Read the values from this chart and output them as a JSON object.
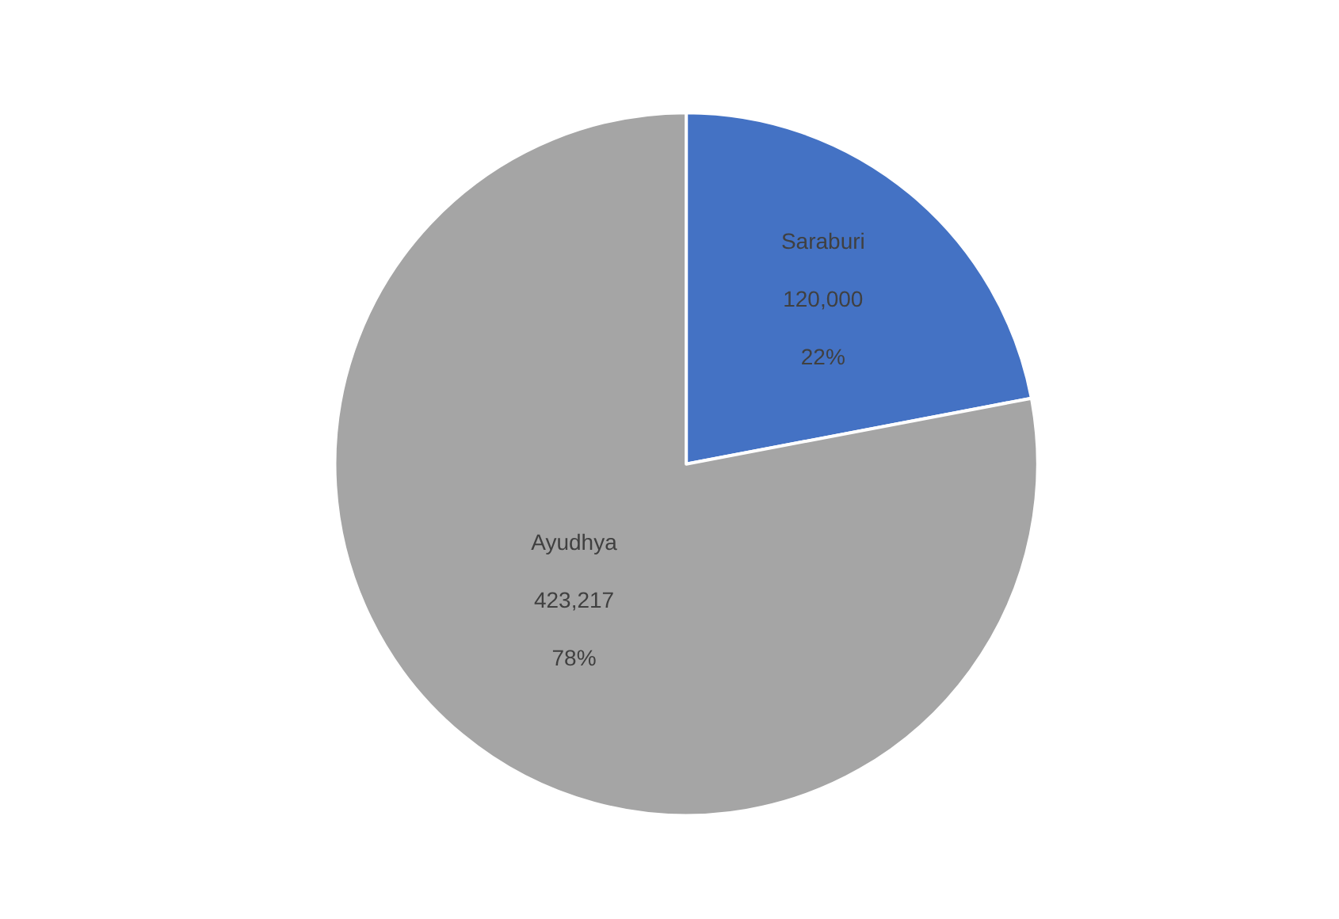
{
  "chart_data": {
    "type": "pie",
    "categories": [
      "Saraburi",
      "Ayudhya"
    ],
    "values": [
      22,
      78
    ],
    "colors": [
      "#4472c4",
      "#a5a5a5"
    ],
    "value_labels": [
      "120,000\n22%",
      "423,217\n78%"
    ],
    "legend": false
  }
}
